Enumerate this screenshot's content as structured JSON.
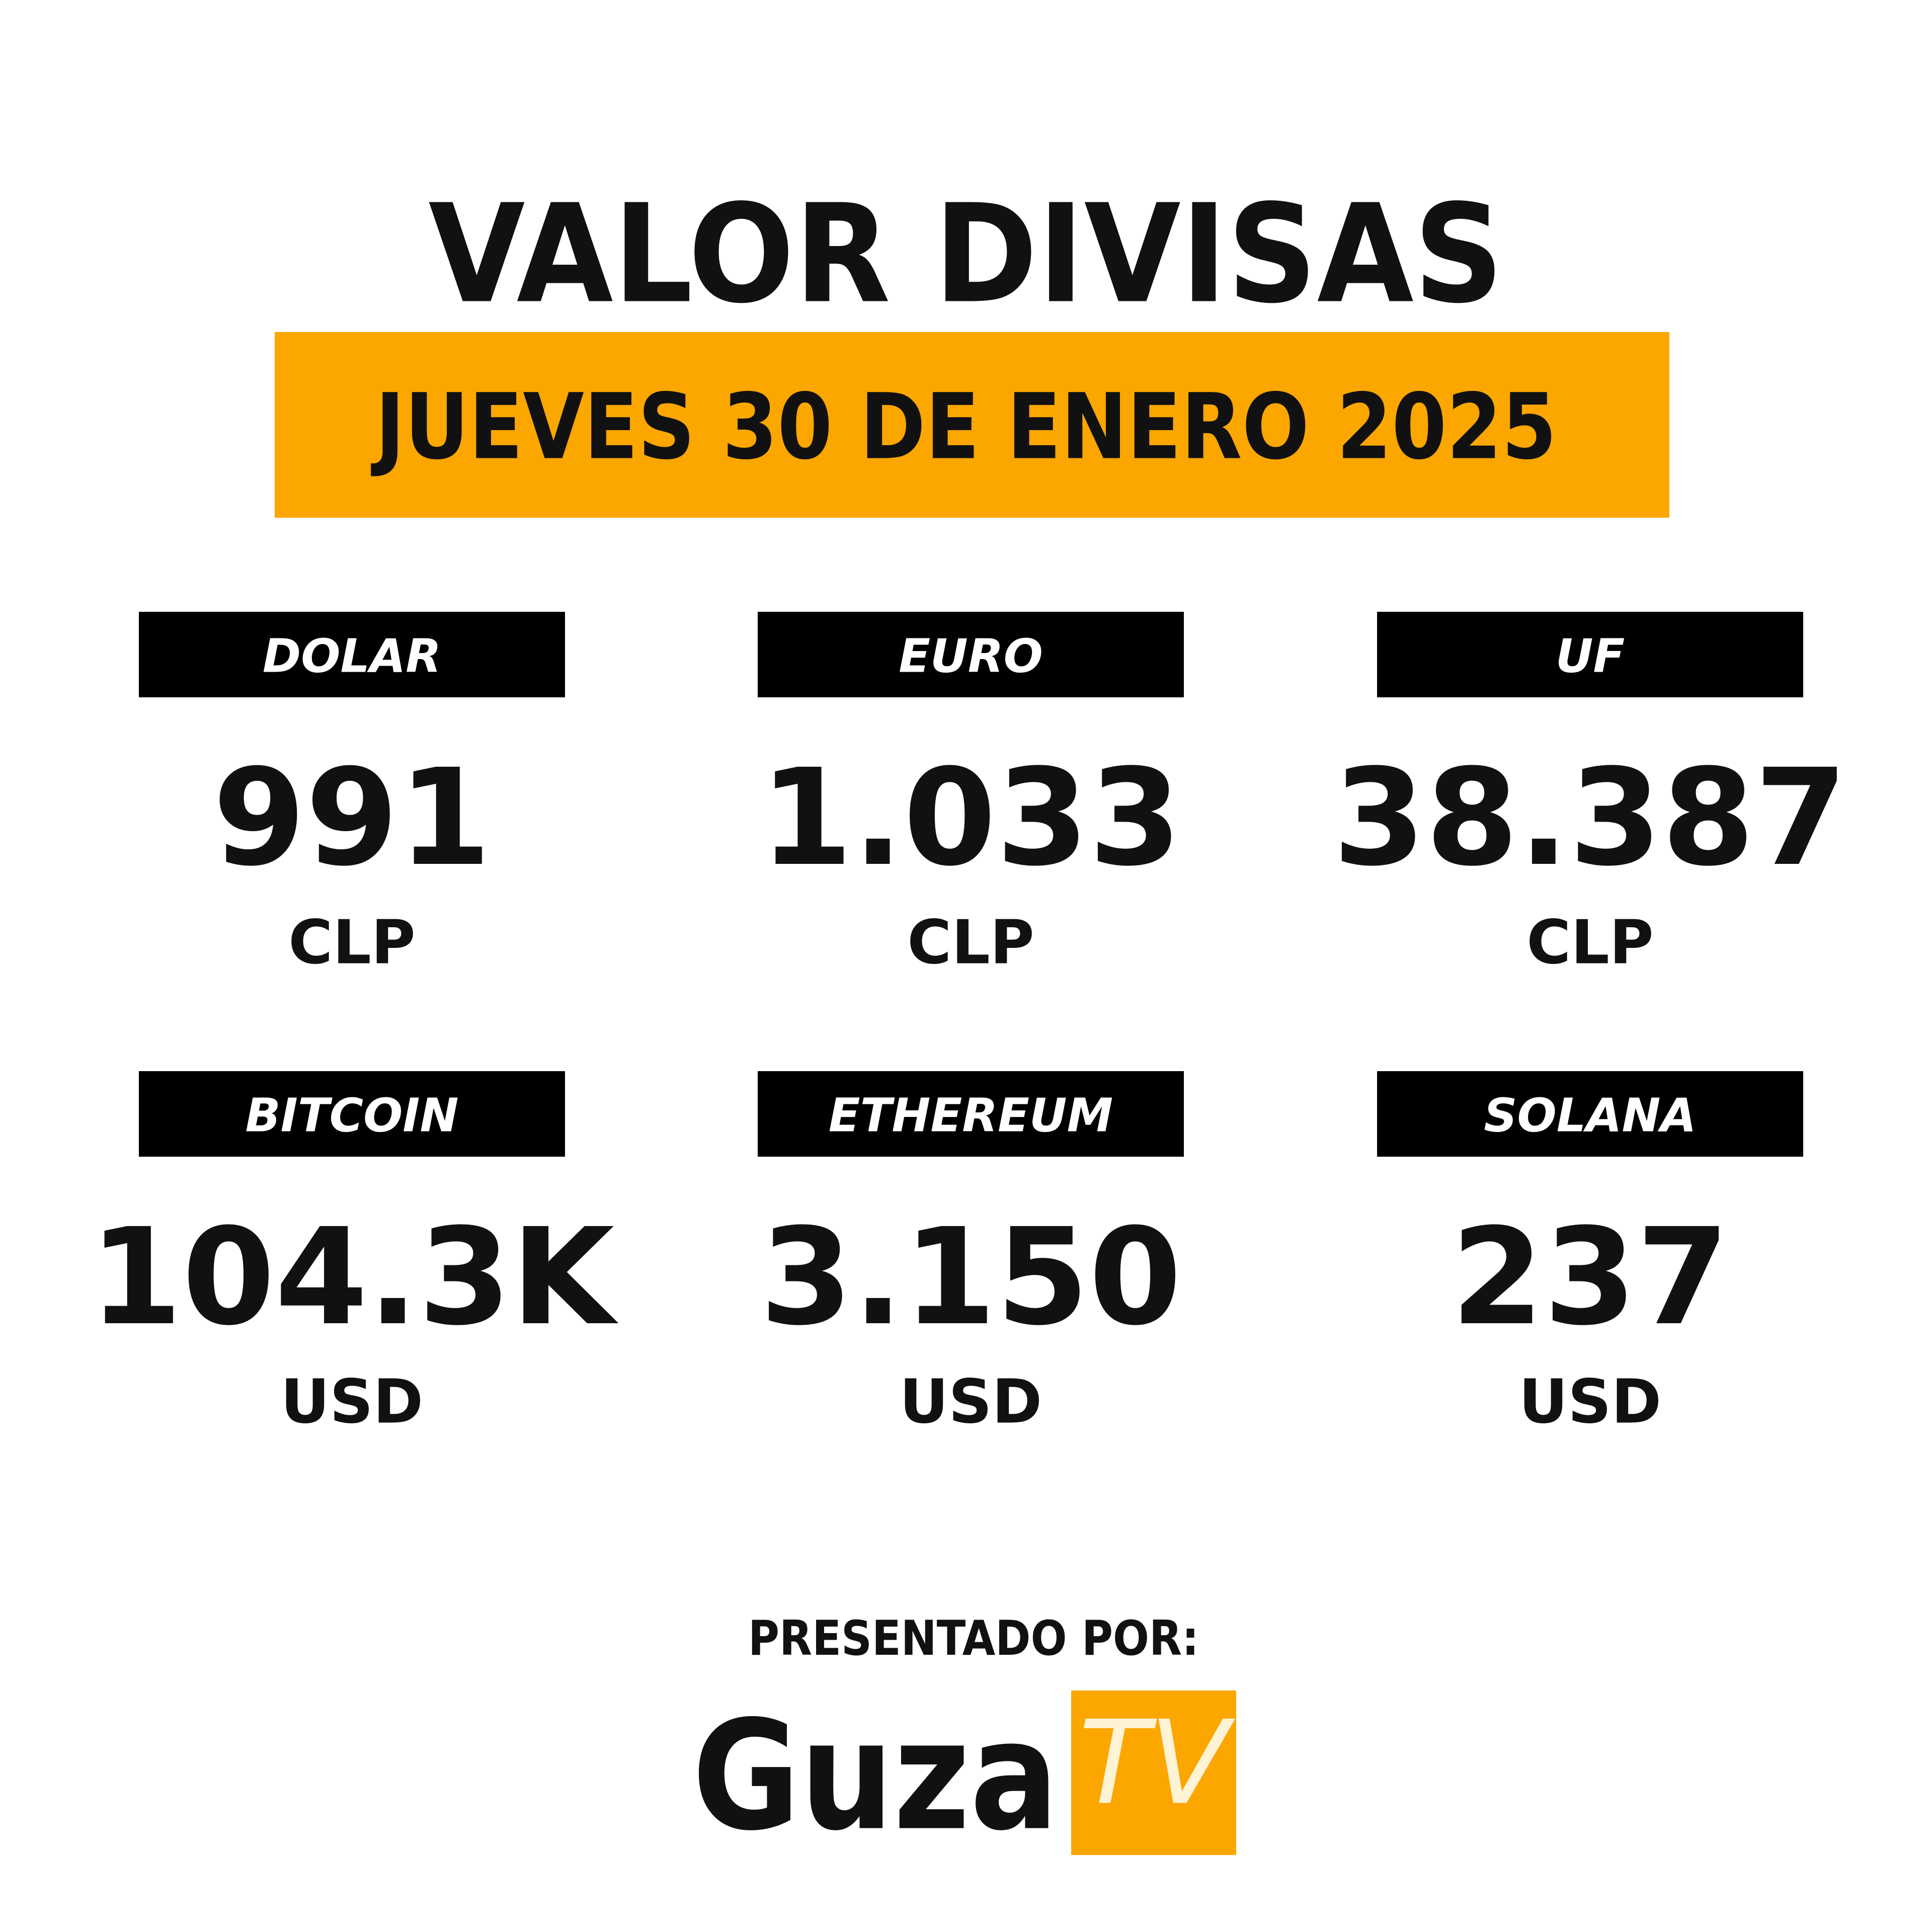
{
  "header": {
    "title": "VALOR DIVISAS",
    "date": "JUEVES 30 DE ENERO 2025"
  },
  "cards": [
    {
      "label": "DOLAR",
      "value": "991",
      "unit": "CLP"
    },
    {
      "label": "EURO",
      "value": "1.033",
      "unit": "CLP"
    },
    {
      "label": "UF",
      "value": "38.387",
      "unit": "CLP"
    },
    {
      "label": "BITCOIN",
      "value": "104.3K",
      "unit": "USD"
    },
    {
      "label": "ETHEREUM",
      "value": "3.150",
      "unit": "USD"
    },
    {
      "label": "SOLANA",
      "value": "237",
      "unit": "USD"
    }
  ],
  "footer": {
    "presented_by": "PRESENTADO POR:",
    "logo": {
      "name": "Guza",
      "badge": "TV"
    }
  }
}
